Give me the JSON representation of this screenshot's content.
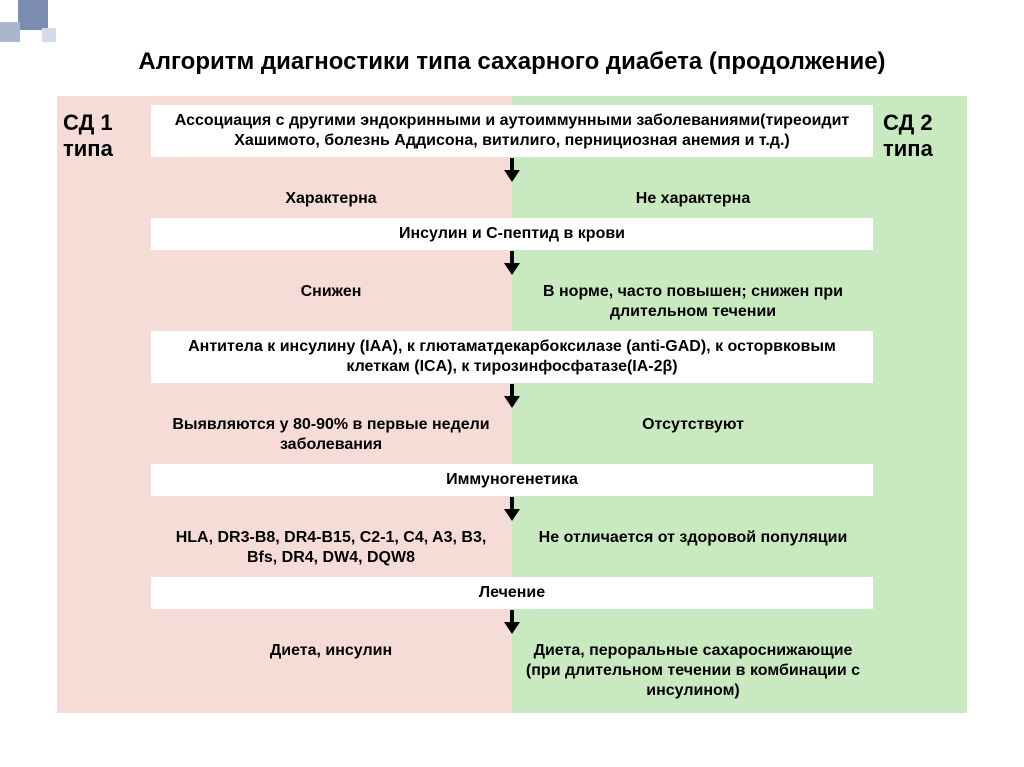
{
  "colors": {
    "left_bg": "#f5dcd6",
    "right_bg": "#c9e9c0",
    "deco_dark": "#7a8cb0",
    "deco_mid": "#a8b6d0",
    "deco_light": "#d4dbe8"
  },
  "title": {
    "text": "Алгоритм диагностики типа сахарного диабета (продолжение)",
    "fontsize": 24
  },
  "sides": {
    "left": "СД 1 типа",
    "right": "СД 2 типа",
    "fontsize": 22
  },
  "layout": {
    "diagram_height": 600,
    "row_fontsize": 16,
    "arrow_lengths": [
      12,
      12,
      12,
      12,
      12
    ]
  },
  "rows": [
    {
      "type": "full",
      "text": "Ассоциация с другими эндокринными и аутоиммунными заболеваниями(тиреоидит Хашимото, болезнь Аддисона,  витилиго, пернициозная анемия и т.д.)"
    },
    {
      "type": "arrow"
    },
    {
      "type": "pair",
      "left": "Характерна",
      "right": "Не характерна"
    },
    {
      "type": "full",
      "text": "Инсулин и С-пептид в крови"
    },
    {
      "type": "arrow"
    },
    {
      "type": "pair",
      "left": "Снижен",
      "right": "В норме, часто повышен; снижен при длительном течении"
    },
    {
      "type": "full",
      "text": "Антитела к инсулину (IAA), к глютаматдекарбоксилазе (anti-GAD), к осторвковым клеткам (ICA), к тирозинфосфатазе(IA-2β)"
    },
    {
      "type": "arrow"
    },
    {
      "type": "pair",
      "left": "Выявляются у 80-90% в первые недели заболевания",
      "right": "Отсутствуют"
    },
    {
      "type": "full",
      "text": "Иммуногенетика"
    },
    {
      "type": "arrow"
    },
    {
      "type": "pair",
      "left": "HLA, DR3-B8, DR4-B15, C2-1, C4, A3, B3, Bfs, DR4, DW4, DQW8",
      "right": "Не отличается от здоровой популяции"
    },
    {
      "type": "full",
      "text": "Лечение"
    },
    {
      "type": "arrow"
    },
    {
      "type": "pair",
      "left": "Диета, инсулин",
      "right": "Диета, пероральные сахароснижающие (при длительном течении в комбинации с инсулином)"
    }
  ]
}
